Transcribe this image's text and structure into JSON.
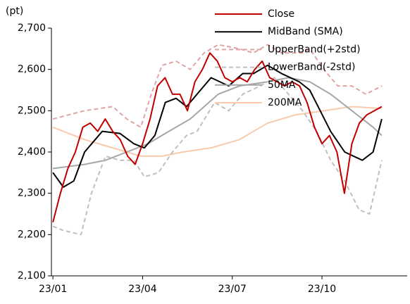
{
  "chart_data": {
    "type": "line",
    "y_unit": "(pt)",
    "xlim": [
      -0.05,
      11.85
    ],
    "xticks": [
      {
        "value": 0,
        "label": "23/01"
      },
      {
        "value": 3,
        "label": "23/04"
      },
      {
        "value": 6,
        "label": "23/07"
      },
      {
        "value": 9,
        "label": "23/10"
      }
    ],
    "ylim": [
      2100,
      2700
    ],
    "yticks": [
      {
        "value": 2100,
        "label": "2,100"
      },
      {
        "value": 2200,
        "label": "2,200"
      },
      {
        "value": 2300,
        "label": "2,300"
      },
      {
        "value": 2400,
        "label": "2,400"
      },
      {
        "value": 2500,
        "label": "2,500"
      },
      {
        "value": 2600,
        "label": "2,600"
      },
      {
        "value": 2700,
        "label": "2,700"
      }
    ],
    "grid": false,
    "legend": "top",
    "series": [
      {
        "name": "Close",
        "color": "#c00000",
        "dash": false,
        "x": [
          0,
          0.25,
          0.5,
          0.75,
          1,
          1.25,
          1.5,
          1.75,
          2,
          2.25,
          2.5,
          2.75,
          3,
          3.25,
          3.5,
          3.75,
          4,
          4.25,
          4.5,
          4.75,
          5,
          5.25,
          5.5,
          5.75,
          6,
          6.25,
          6.5,
          6.75,
          7,
          7.25,
          7.5,
          7.75,
          8,
          8.25,
          8.5,
          8.75,
          9,
          9.25,
          9.5,
          9.75,
          10,
          10.25,
          10.5,
          10.75,
          11
        ],
        "values": [
          2230,
          2300,
          2360,
          2400,
          2460,
          2470,
          2450,
          2480,
          2450,
          2430,
          2390,
          2370,
          2420,
          2480,
          2560,
          2580,
          2540,
          2540,
          2500,
          2570,
          2600,
          2640,
          2620,
          2580,
          2570,
          2580,
          2570,
          2600,
          2620,
          2580,
          2570,
          2560,
          2570,
          2560,
          2520,
          2460,
          2420,
          2440,
          2400,
          2300,
          2420,
          2470,
          2490,
          2500,
          2510
        ]
      },
      {
        "name": "MidBand (SMA)",
        "color": "#000000",
        "dash": false,
        "x": [
          0,
          0.35,
          0.7,
          1.06,
          1.65,
          2.24,
          2.71,
          3.06,
          3.41,
          3.76,
          4.12,
          4.47,
          4.82,
          5.29,
          5.88,
          6.35,
          6.71,
          7.18,
          7.65,
          8.24,
          8.59,
          8.94,
          9.29,
          9.76,
          10.35,
          10.71,
          11
        ],
        "values": [
          2350,
          2315,
          2330,
          2400,
          2450,
          2445,
          2420,
          2410,
          2440,
          2520,
          2530,
          2510,
          2540,
          2580,
          2560,
          2590,
          2590,
          2610,
          2590,
          2570,
          2550,
          2500,
          2450,
          2400,
          2380,
          2400,
          2480
        ]
      },
      {
        "name": "UpperBand(+2std)",
        "color": "#e3a3a3",
        "dash": true,
        "x": [
          0,
          1.06,
          2,
          2.47,
          2.94,
          3.29,
          3.65,
          4.12,
          4.59,
          5.06,
          5.53,
          6.24,
          6.71,
          7.18,
          7.65,
          8.35,
          8.59,
          9.06,
          9.53,
          10,
          10.47,
          11
        ],
        "values": [
          2480,
          2500,
          2510,
          2480,
          2460,
          2540,
          2610,
          2620,
          2600,
          2640,
          2660,
          2650,
          2640,
          2660,
          2640,
          2640,
          2650,
          2600,
          2560,
          2560,
          2540,
          2560
        ]
      },
      {
        "name": "LowerBand(-2std)",
        "color": "#bfbfbf",
        "dash": true,
        "x": [
          0,
          0.35,
          0.94,
          1.29,
          1.76,
          2.24,
          2.71,
          3.06,
          3.53,
          4,
          4.47,
          4.82,
          5.41,
          5.88,
          6.35,
          6.94,
          7.41,
          7.88,
          8.35,
          8.82,
          9.29,
          9.76,
          10.24,
          10.59,
          11
        ],
        "values": [
          2220,
          2210,
          2200,
          2300,
          2390,
          2380,
          2380,
          2340,
          2350,
          2400,
          2440,
          2450,
          2520,
          2500,
          2540,
          2560,
          2580,
          2540,
          2500,
          2450,
          2380,
          2330,
          2260,
          2250,
          2380
        ]
      },
      {
        "name": "50MA",
        "color": "#a6a6a6",
        "dash": false,
        "x": [
          0,
          1.06,
          1.76,
          2.47,
          3.18,
          3.88,
          4.59,
          5.06,
          5.53,
          6.24,
          7.18,
          7.88,
          8.59,
          9.29,
          10,
          10.71,
          11
        ],
        "values": [
          2360,
          2370,
          2380,
          2400,
          2420,
          2450,
          2480,
          2510,
          2540,
          2560,
          2570,
          2580,
          2570,
          2540,
          2500,
          2460,
          2440
        ]
      },
      {
        "name": "200MA",
        "color": "#f8cbad",
        "dash": false,
        "x": [
          0,
          1.06,
          2,
          2.94,
          3.65,
          4.35,
          5.29,
          6.24,
          7.18,
          8.12,
          9.06,
          10,
          11
        ],
        "values": [
          2460,
          2430,
          2410,
          2390,
          2390,
          2400,
          2410,
          2430,
          2470,
          2490,
          2500,
          2510,
          2505
        ]
      }
    ]
  }
}
